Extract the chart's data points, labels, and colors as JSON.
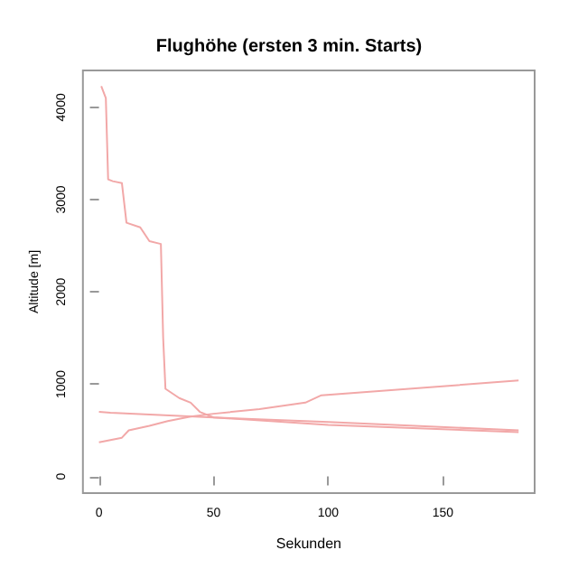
{
  "chart_data": {
    "type": "line",
    "title": "Flughöhe (ersten 3 min. Starts)",
    "xlabel": "Sekunden",
    "ylabel": "Altitude [m]",
    "xlim": [
      -7,
      190
    ],
    "ylim": [
      -180,
      4400
    ],
    "xticks": [
      0,
      50,
      100,
      150
    ],
    "yticks": [
      0,
      1000,
      2000,
      3000,
      4000
    ],
    "grid": false,
    "series": [
      {
        "color": "#f2a8a8",
        "x": [
          1,
          3,
          4,
          6,
          10,
          12,
          18,
          22,
          27,
          28,
          29,
          35,
          40,
          44,
          50,
          100,
          183
        ],
        "values": [
          4230,
          4100,
          3220,
          3200,
          3180,
          2750,
          2700,
          2550,
          2520,
          1500,
          950,
          850,
          800,
          700,
          640,
          560,
          480
        ]
      },
      {
        "color": "#f2a8a8",
        "x": [
          0,
          10,
          13,
          22,
          30,
          40,
          50,
          70,
          90,
          97,
          183
        ],
        "values": [
          370,
          420,
          500,
          550,
          600,
          650,
          680,
          730,
          800,
          880,
          1040
        ]
      },
      {
        "color": "#f2a8a8",
        "x": [
          0,
          5,
          50,
          100,
          183
        ],
        "values": [
          700,
          690,
          640,
          590,
          500
        ]
      }
    ]
  }
}
